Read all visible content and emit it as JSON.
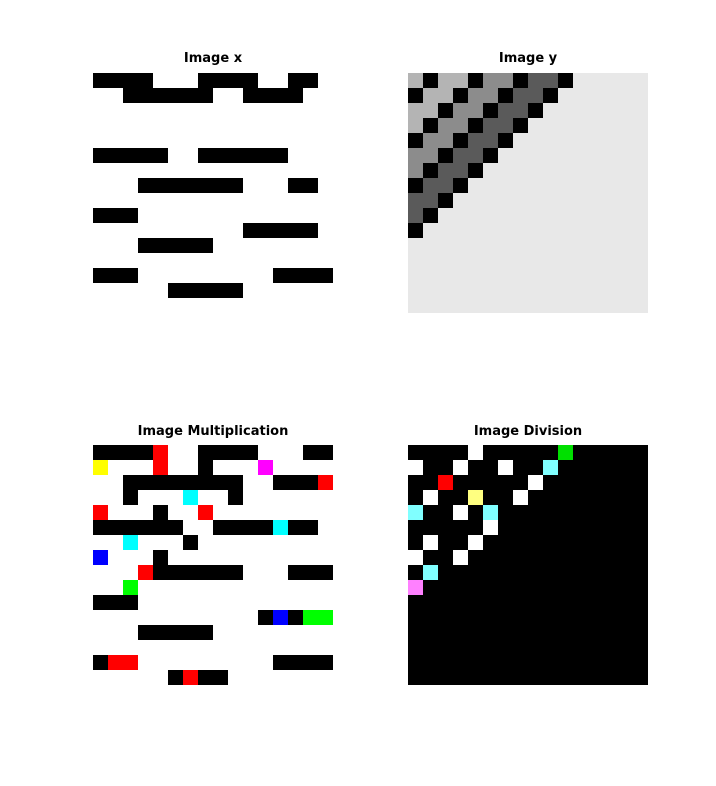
{
  "colors": {
    "background": "#ffffff",
    "title": "#000000",
    "palette": {
      "K": "#000000",
      "W": "#ffffff",
      "R": "#ff0000",
      "Y": "#ffff00",
      "M": "#ff00ff",
      "C": "#00ffff",
      "B": "#0000ff",
      "G": "#00ff00",
      "c": "#80ffff",
      "y": "#ffff80",
      "p": "#ff80ff",
      "g": "#00e000",
      "a": "#b4b4b4",
      "b": "#8c8c8c",
      "d": "#6e6e6e",
      "e": "#5a5a5a",
      "f": "#e8e8e8"
    }
  },
  "chart_data": [
    {
      "type": "heatmap",
      "title": "Image x",
      "xlabel": "",
      "ylabel": "",
      "axis": "off",
      "grid": "16x16",
      "rows": [
        "KKKKWWWKKKKWWKKW",
        "WWKKKKKKWWKKKKWW",
        "WWWWWWWWWWWWWWWW",
        "WWWWWWWWWWWWWWWW",
        "WWWWWWWWWWWWWWWW",
        "KKKKKWWKKKKKKWWW",
        "WWWWWWWWWWWWWWWW",
        "WWWKKKKKKKWWWKKW",
        "WWWWWWWWWWWWWWWW",
        "KKKWWWWWWWWWWWWW",
        "WWWWWWWWWWKKKKKW",
        "WWWKKKKKWWWWWWWW",
        "WWWWWWWWWWWWWWWW",
        "KKKWWWWWWWWWKKKK",
        "WWWWWKKKKKWWWWWW",
        "WWWWWWWWWWWWWWWW"
      ]
    },
    {
      "type": "heatmap",
      "title": "Image y",
      "xlabel": "",
      "ylabel": "",
      "axis": "off",
      "grid": "16x16",
      "rows": [
        "aKaaKbbKeeKfffff",
        "KaaKbbKeeKffffff",
        "aaKbbKeeKfffffff",
        "aKbbKeeKffffffff",
        "KbbKeeKfffffffff",
        "bbKeeKffffffffff",
        "bKeeKfffffffffff",
        "KeeKffffffffffff",
        "eeKfffffffffffff",
        "eKffffffffffffff",
        "Kfffffffffffffff",
        "ffffffffffffffff",
        "ffffffffffffffff",
        "ffffffffffffffff",
        "ffffffffffffffff",
        "ffffffffffffffff"
      ]
    },
    {
      "type": "heatmap",
      "title": "Image Multiplication",
      "xlabel": "",
      "ylabel": "",
      "axis": "off",
      "grid": "16x16",
      "rows": [
        "KKKKRWWKKKKWWWKK",
        "YWWWRWWKWWWMWWWW",
        "WWKKKKKKKKWWKKKR",
        "WWKWWWCWWKWWWWWW",
        "RWWWKWWRWWWWWWWW",
        "KKKKKKWWKKKKCKKW",
        "WWCWWWKWWWWWWWWW",
        "BWWWKWWWWWWWWWWW",
        "WWWRKKKKKKWWWKKK",
        "WWGWWWWWWWWWWWWW",
        "KKKWWWWWWWWWWWWW",
        "WWWWWWWWWWWKBKGG",
        "WWWKKKKKWWWWWWWW",
        "WWWWWWWWWWWWWWWW",
        "KRRWWWWWWWWWKKKK",
        "WWWWWKRKKWWWWWWW"
      ]
    },
    {
      "type": "heatmap",
      "title": "Image Division",
      "xlabel": "",
      "ylabel": "",
      "axis": "off",
      "grid": "16x16",
      "rows": [
        "KKKKWKKKKKgKKKKK",
        "WKKWKKWKKcKKKKKK",
        "KKRKKKKKWKKKKKKK",
        "KWKKyKKWKKKKKKKK",
        "cKKWKcKKKKKKKKKK",
        "KKKKKWKKKKKKKKKK",
        "KWKKWKKKKKKKKKKK",
        "WKKWKKKKKKKKKKKK",
        "KcKKKKKKKKKKKKKK",
        "pKKKKKKKKKKKKKKK",
        "KKKKKKKKKKKKKKKK",
        "KKKKKKKKKKKKKKKK",
        "KKKKKKKKKKKKKKKK",
        "KKKKKKKKKKKKKKKK",
        "KKKKKKKKKKKKKKKK",
        "KKKKKKKKKKKKKKKK"
      ]
    }
  ]
}
